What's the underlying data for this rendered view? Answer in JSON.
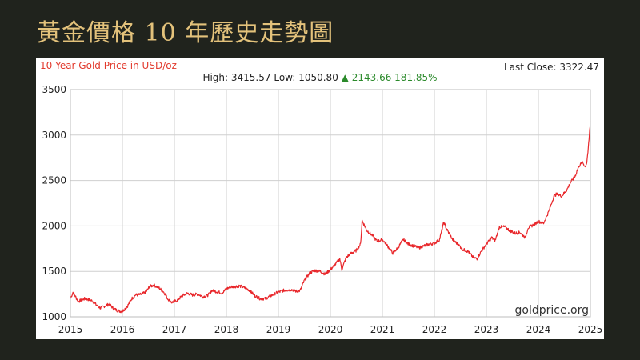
{
  "page": {
    "title": "黃金價格 10 年歷史走勢圖",
    "background": "#20231d",
    "title_color": "#e3c27b"
  },
  "header": {
    "chart_title": "10 Year Gold Price in USD/oz",
    "last_close_label": "Last Close:",
    "last_close_value": "3322.47",
    "high_label": "High:",
    "high_value": "3415.57",
    "low_label": "Low:",
    "low_value": "1050.80",
    "change_arrow": "▲",
    "change_value": "2143.66",
    "change_pct": "181.85%"
  },
  "watermark": "goldprice.org",
  "chart_data": {
    "type": "line",
    "title": "10 Year Gold Price in USD/oz",
    "xlabel": "",
    "ylabel": "",
    "xlim": [
      2015,
      2025
    ],
    "ylim": [
      1000,
      3500
    ],
    "x_ticks": [
      "2015",
      "2016",
      "2017",
      "2018",
      "2019",
      "2020",
      "2021",
      "2022",
      "2023",
      "2024",
      "2025"
    ],
    "y_ticks": [
      "1000",
      "1500",
      "2000",
      "2500",
      "3000",
      "3500"
    ],
    "grid": true,
    "legend": "none",
    "line_color": "#e8272b",
    "series": [
      {
        "x": [
          2015.0,
          2015.05,
          2015.1,
          2015.15,
          2015.2,
          2015.28,
          2015.35,
          2015.42,
          2015.5,
          2015.58,
          2015.66,
          2015.75,
          2015.83,
          2015.92,
          2016.0,
          2016.05,
          2016.1,
          2016.18,
          2016.25,
          2016.35,
          2016.45,
          2016.52,
          2016.6,
          2016.7,
          2016.8,
          2016.87,
          2016.95,
          2017.05,
          2017.15,
          2017.25,
          2017.35,
          2017.45,
          2017.55,
          2017.65,
          2017.72,
          2017.8,
          2017.92,
          2018.0,
          2018.1,
          2018.25,
          2018.35,
          2018.45,
          2018.55,
          2018.65,
          2018.75,
          2018.85,
          2018.95,
          2019.1,
          2019.25,
          2019.35,
          2019.42,
          2019.5,
          2019.6,
          2019.7,
          2019.8,
          2019.9,
          2020.0,
          2020.1,
          2020.18,
          2020.22,
          2020.3,
          2020.4,
          2020.5,
          2020.58,
          2020.61,
          2020.7,
          2020.8,
          2020.9,
          2021.0,
          2021.1,
          2021.2,
          2021.3,
          2021.4,
          2021.5,
          2021.6,
          2021.7,
          2021.8,
          2021.9,
          2022.0,
          2022.1,
          2022.18,
          2022.25,
          2022.35,
          2022.45,
          2022.55,
          2022.65,
          2022.75,
          2022.82,
          2022.9,
          2023.0,
          2023.1,
          2023.17,
          2023.25,
          2023.35,
          2023.45,
          2023.55,
          2023.65,
          2023.75,
          2023.8,
          2023.9,
          2024.0,
          2024.1,
          2024.2,
          2024.3,
          2024.35,
          2024.45,
          2024.55,
          2024.62,
          2024.7,
          2024.78,
          2024.85,
          2024.9,
          2024.93,
          2024.96,
          2024.98,
          2025.0
        ],
        "y": [
          1200,
          1270,
          1220,
          1170,
          1180,
          1200,
          1190,
          1175,
          1130,
          1095,
          1120,
          1140,
          1090,
          1065,
          1060,
          1090,
          1120,
          1200,
          1240,
          1245,
          1270,
          1330,
          1350,
          1320,
          1270,
          1200,
          1160,
          1180,
          1230,
          1260,
          1240,
          1250,
          1220,
          1240,
          1290,
          1280,
          1260,
          1310,
          1330,
          1340,
          1320,
          1290,
          1230,
          1200,
          1200,
          1230,
          1260,
          1290,
          1300,
          1280,
          1290,
          1400,
          1480,
          1510,
          1500,
          1470,
          1520,
          1580,
          1640,
          1520,
          1650,
          1700,
          1730,
          1800,
          2060,
          1950,
          1900,
          1830,
          1850,
          1780,
          1700,
          1760,
          1850,
          1800,
          1780,
          1760,
          1780,
          1800,
          1810,
          1850,
          2040,
          1950,
          1850,
          1800,
          1740,
          1720,
          1650,
          1640,
          1720,
          1800,
          1870,
          1840,
          1990,
          1990,
          1950,
          1920,
          1930,
          1870,
          1980,
          2010,
          2050,
          2030,
          2160,
          2330,
          2350,
          2330,
          2400,
          2480,
          2540,
          2660,
          2700,
          2650,
          2700,
          2850,
          3000,
          3150
        ]
      }
    ]
  }
}
